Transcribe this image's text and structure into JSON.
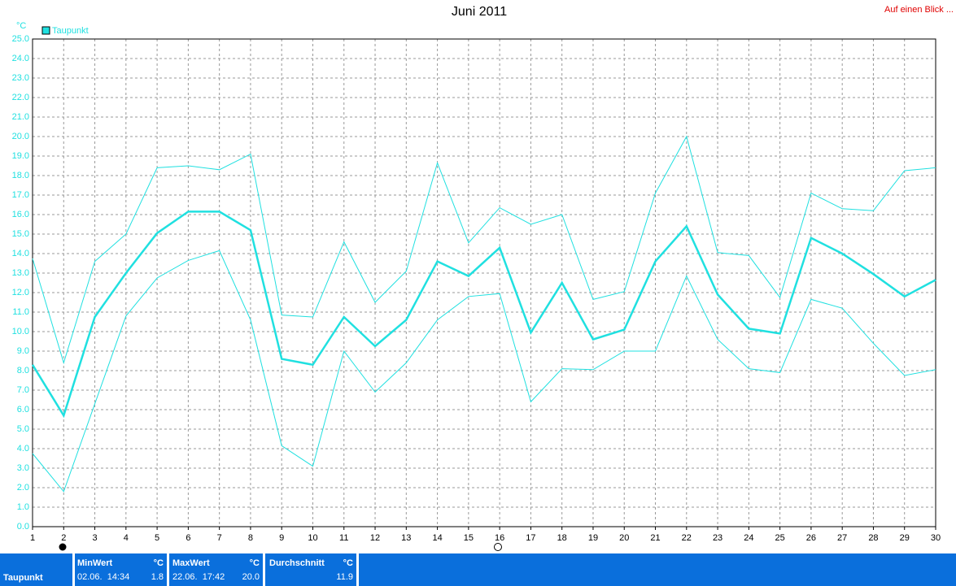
{
  "chart_data": {
    "type": "line",
    "title": "Juni 2011",
    "link": "Auf einen Blick ...",
    "y_unit": "°C",
    "x": [
      1,
      2,
      3,
      4,
      5,
      6,
      7,
      8,
      9,
      10,
      11,
      12,
      13,
      14,
      15,
      16,
      17,
      18,
      19,
      20,
      21,
      22,
      23,
      24,
      25,
      26,
      27,
      28,
      29,
      30
    ],
    "xlim": [
      1,
      30
    ],
    "xticks": [
      1,
      2,
      3,
      4,
      5,
      6,
      7,
      8,
      9,
      10,
      11,
      12,
      13,
      14,
      15,
      16,
      17,
      18,
      19,
      20,
      21,
      22,
      23,
      24,
      25,
      26,
      27,
      28,
      29,
      30
    ],
    "ylim": [
      0,
      25
    ],
    "yticks": [
      {
        "value": 0,
        "label": "0.0"
      },
      {
        "value": 1,
        "label": "1.0"
      },
      {
        "value": 2,
        "label": "2.0"
      },
      {
        "value": 3,
        "label": "3.0"
      },
      {
        "value": 4,
        "label": "4.0"
      },
      {
        "value": 5,
        "label": "5.0"
      },
      {
        "value": 6,
        "label": "6.0"
      },
      {
        "value": 7,
        "label": "7.0"
      },
      {
        "value": 8,
        "label": "8.0"
      },
      {
        "value": 9,
        "label": "9.0"
      },
      {
        "value": 10,
        "label": "10.0"
      },
      {
        "value": 11,
        "label": "11.0"
      },
      {
        "value": 12,
        "label": "12.0"
      },
      {
        "value": 13,
        "label": "13.0"
      },
      {
        "value": 14,
        "label": "14.0"
      },
      {
        "value": 15,
        "label": "15.0"
      },
      {
        "value": 16,
        "label": "16.0"
      },
      {
        "value": 17,
        "label": "17.0"
      },
      {
        "value": 18,
        "label": "18.0"
      },
      {
        "value": 19,
        "label": "19.0"
      },
      {
        "value": 20,
        "label": "20.0"
      },
      {
        "value": 21,
        "label": "21.0"
      },
      {
        "value": 22,
        "label": "22.0"
      },
      {
        "value": 23,
        "label": "23.0"
      },
      {
        "value": 24,
        "label": "24.0"
      },
      {
        "value": 25,
        "label": "25.0"
      }
    ],
    "grid": true,
    "series": [
      {
        "name": "Taupunkt",
        "color": "#20e0e0",
        "width": 2.5,
        "values": [
          8.3,
          5.7,
          10.75,
          13.0,
          15.05,
          16.15,
          16.15,
          15.2,
          8.6,
          8.3,
          10.75,
          9.25,
          10.6,
          13.6,
          12.85,
          14.3,
          9.95,
          12.5,
          9.6,
          10.1,
          13.6,
          15.4,
          11.9,
          10.15,
          9.9,
          14.8,
          14.0,
          12.95,
          11.8,
          12.65
        ]
      },
      {
        "color": "#20e0e0",
        "width": 1,
        "values": [
          13.75,
          8.4,
          13.6,
          15.0,
          18.4,
          18.5,
          18.3,
          19.1,
          10.85,
          10.75,
          14.6,
          11.5,
          13.1,
          18.65,
          14.55,
          16.35,
          15.5,
          16.0,
          11.65,
          12.05,
          17.1,
          20.0,
          14.05,
          13.9,
          11.75,
          17.1,
          16.3,
          16.2,
          18.25,
          18.4
        ]
      },
      {
        "color": "#20e0e0",
        "width": 1,
        "values": [
          3.75,
          1.8,
          6.3,
          10.8,
          12.75,
          13.65,
          14.15,
          10.6,
          4.15,
          3.1,
          9.0,
          6.9,
          8.4,
          10.6,
          11.8,
          11.95,
          6.4,
          8.1,
          8.05,
          9.0,
          9.0,
          12.85,
          9.6,
          8.1,
          7.9,
          11.65,
          11.2,
          9.4,
          7.75,
          8.05
        ]
      }
    ]
  },
  "summary": {
    "row_label": "Taupunkt",
    "min": {
      "label": "MinWert",
      "unit": "°C",
      "time": "02.06.  14:34",
      "value": "1.8"
    },
    "max": {
      "label": "MaxWert",
      "unit": "°C",
      "time": "22.06.  17:42",
      "value": "20.0"
    },
    "avg": {
      "label": "Durchschnitt",
      "unit": "°C",
      "value": "11.9"
    }
  }
}
